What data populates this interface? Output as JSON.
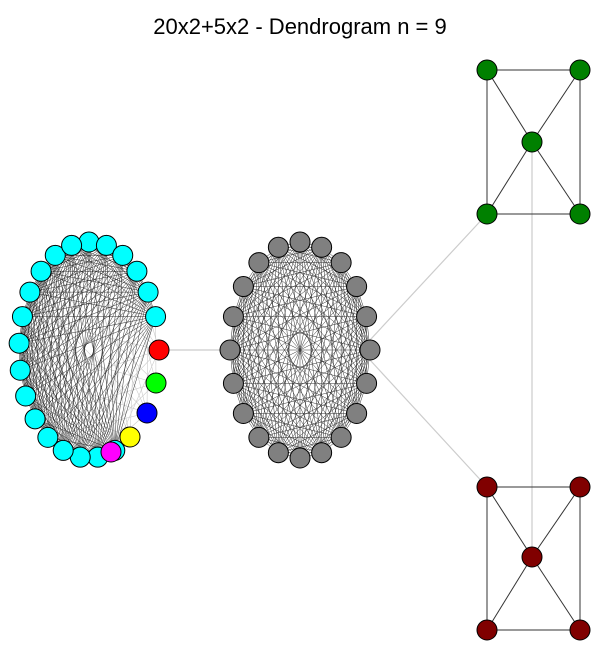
{
  "title": "20x2+5x2 - Dendrogram n = 9",
  "colors": {
    "cyan": "#00ffff",
    "gray": "#808080",
    "green": "#008000",
    "darkred": "#800000",
    "red": "#ff0000",
    "lime": "#00ff00",
    "blue": "#0000ff",
    "yellow": "#ffff00",
    "magenta": "#ff00ff",
    "edge_dark": "#333333",
    "edge_light": "#cccccc",
    "node_outline": "#000000"
  },
  "clusters": [
    {
      "name": "cyan-cluster",
      "node_count": 20,
      "color": "cyan",
      "edges": "complete"
    },
    {
      "name": "gray-cluster",
      "node_count": 20,
      "color": "gray",
      "edges": "complete"
    },
    {
      "name": "green-cluster",
      "node_count": 5,
      "color": "green",
      "edges": "bowtie"
    },
    {
      "name": "darkred-cluster",
      "node_count": 5,
      "color": "darkred",
      "edges": "bowtie"
    }
  ],
  "singleton_nodes": [
    {
      "name": "red-node",
      "color": "red"
    },
    {
      "name": "lime-node",
      "color": "lime"
    },
    {
      "name": "blue-node",
      "color": "blue"
    },
    {
      "name": "yellow-node",
      "color": "yellow"
    },
    {
      "name": "magenta-node",
      "color": "magenta"
    }
  ]
}
